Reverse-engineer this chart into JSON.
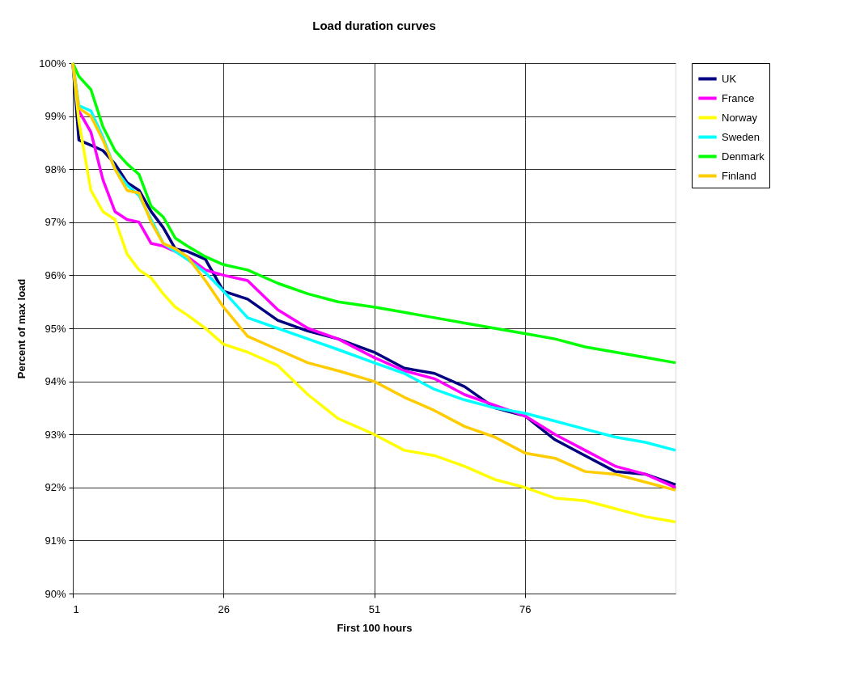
{
  "chart_data": {
    "type": "line",
    "title": "Load duration curves",
    "xlabel": "First 100 hours",
    "ylabel": "Percent of max load",
    "x": [
      1,
      2,
      4,
      6,
      8,
      10,
      12,
      14,
      16,
      18,
      20,
      23,
      26,
      30,
      35,
      40,
      45,
      51,
      56,
      61,
      66,
      71,
      76,
      81,
      86,
      91,
      96,
      101
    ],
    "series": [
      {
        "name": "UK",
        "color": "#000080",
        "values": [
          100,
          98.55,
          98.45,
          98.35,
          98.1,
          97.75,
          97.6,
          97.2,
          96.9,
          96.5,
          96.45,
          96.3,
          95.7,
          95.55,
          95.15,
          94.95,
          94.8,
          94.55,
          94.25,
          94.15,
          93.9,
          93.5,
          93.35,
          92.9,
          92.6,
          92.3,
          92.25,
          92.05
        ]
      },
      {
        "name": "France",
        "color": "#ff00ff",
        "values": [
          100,
          99.1,
          98.7,
          97.8,
          97.2,
          97.05,
          97.0,
          96.6,
          96.55,
          96.45,
          96.35,
          96.1,
          96.0,
          95.9,
          95.35,
          95.0,
          94.8,
          94.45,
          94.2,
          94.05,
          93.75,
          93.55,
          93.35,
          93.0,
          92.7,
          92.4,
          92.25,
          92.0
        ]
      },
      {
        "name": "Norway",
        "color": "#ffff00",
        "values": [
          100,
          98.9,
          97.6,
          97.2,
          97.05,
          96.4,
          96.1,
          95.95,
          95.65,
          95.4,
          95.25,
          95.0,
          94.7,
          94.55,
          94.3,
          93.75,
          93.3,
          93.0,
          92.7,
          92.6,
          92.4,
          92.15,
          92.0,
          91.8,
          91.75,
          91.6,
          91.45,
          91.35
        ]
      },
      {
        "name": "Sweden",
        "color": "#00ffff",
        "values": [
          100,
          99.2,
          99.1,
          98.6,
          98.0,
          97.7,
          97.5,
          97.05,
          96.6,
          96.45,
          96.3,
          96.05,
          95.7,
          95.2,
          95.0,
          94.8,
          94.6,
          94.35,
          94.15,
          93.85,
          93.65,
          93.5,
          93.4,
          93.25,
          93.1,
          92.95,
          92.85,
          92.7
        ]
      },
      {
        "name": "Denmark",
        "color": "#00ff00",
        "values": [
          100,
          99.75,
          99.5,
          98.8,
          98.35,
          98.1,
          97.9,
          97.3,
          97.1,
          96.7,
          96.55,
          96.35,
          96.2,
          96.1,
          95.85,
          95.65,
          95.5,
          95.4,
          95.3,
          95.2,
          95.1,
          95.0,
          94.9,
          94.8,
          94.65,
          94.55,
          94.45,
          94.35
        ]
      },
      {
        "name": "Finland",
        "color": "#ffcc00",
        "values": [
          100,
          99.15,
          99.0,
          98.55,
          98.0,
          97.6,
          97.55,
          97.0,
          96.6,
          96.5,
          96.35,
          95.9,
          95.4,
          94.85,
          94.6,
          94.35,
          94.2,
          94.0,
          93.7,
          93.45,
          93.15,
          92.95,
          92.65,
          92.55,
          92.3,
          92.25,
          92.1,
          91.95
        ]
      }
    ],
    "xlim": [
      1,
      101
    ],
    "xticks": [
      1,
      26,
      51,
      76
    ],
    "ylim": [
      90,
      100
    ],
    "yticks": [
      {
        "value": 90,
        "label": "90%"
      },
      {
        "value": 91,
        "label": "91%"
      },
      {
        "value": 92,
        "label": "92%"
      },
      {
        "value": 93,
        "label": "93%"
      },
      {
        "value": 94,
        "label": "94%"
      },
      {
        "value": 95,
        "label": "95%"
      },
      {
        "value": 96,
        "label": "96%"
      },
      {
        "value": 97,
        "label": "97%"
      },
      {
        "value": 98,
        "label": "98%"
      },
      {
        "value": 99,
        "label": "99%"
      },
      {
        "value": 100,
        "label": "100%"
      }
    ],
    "grid": true,
    "legend": "right",
    "marker": "none",
    "line_style": "solid"
  }
}
